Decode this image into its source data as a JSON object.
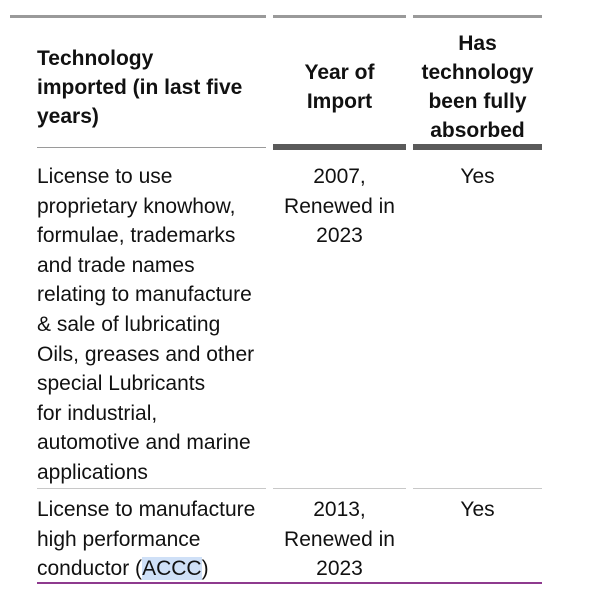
{
  "table": {
    "headers": {
      "technology": [
        "Technology",
        "imported (in last five",
        "years)"
      ],
      "year": [
        "Year of",
        "Import"
      ],
      "absorbed": [
        "Has",
        "technology",
        "been fully",
        "absorbed"
      ]
    },
    "rows": [
      {
        "technology": [
          "License to use",
          "proprietary knowhow,",
          "formulae, trademarks",
          "and trade names",
          "relating to manufacture",
          "& sale of lubricating",
          "Oils, greases and other",
          "special Lubricants",
          "for industrial,",
          "automotive and marine",
          "applications"
        ],
        "year": [
          "2007,",
          "Renewed in",
          "2023"
        ],
        "absorbed": "Yes"
      },
      {
        "technology_lines": {
          "line1": "License to manufacture",
          "line2": "high performance",
          "line3_pre": "conductor (",
          "line3_highlight": "ACCC",
          "line3_post": ")"
        },
        "year": [
          "2013,",
          "Renewed in",
          "2023"
        ],
        "absorbed": "Yes"
      }
    ]
  },
  "colors": {
    "top_rule": "#9a9a9a",
    "header_rule": "#5a5a5a",
    "row_rule": "#c8c8c8",
    "bottom_rule": "#8e3a8e",
    "highlight": "#cfe0f7"
  }
}
